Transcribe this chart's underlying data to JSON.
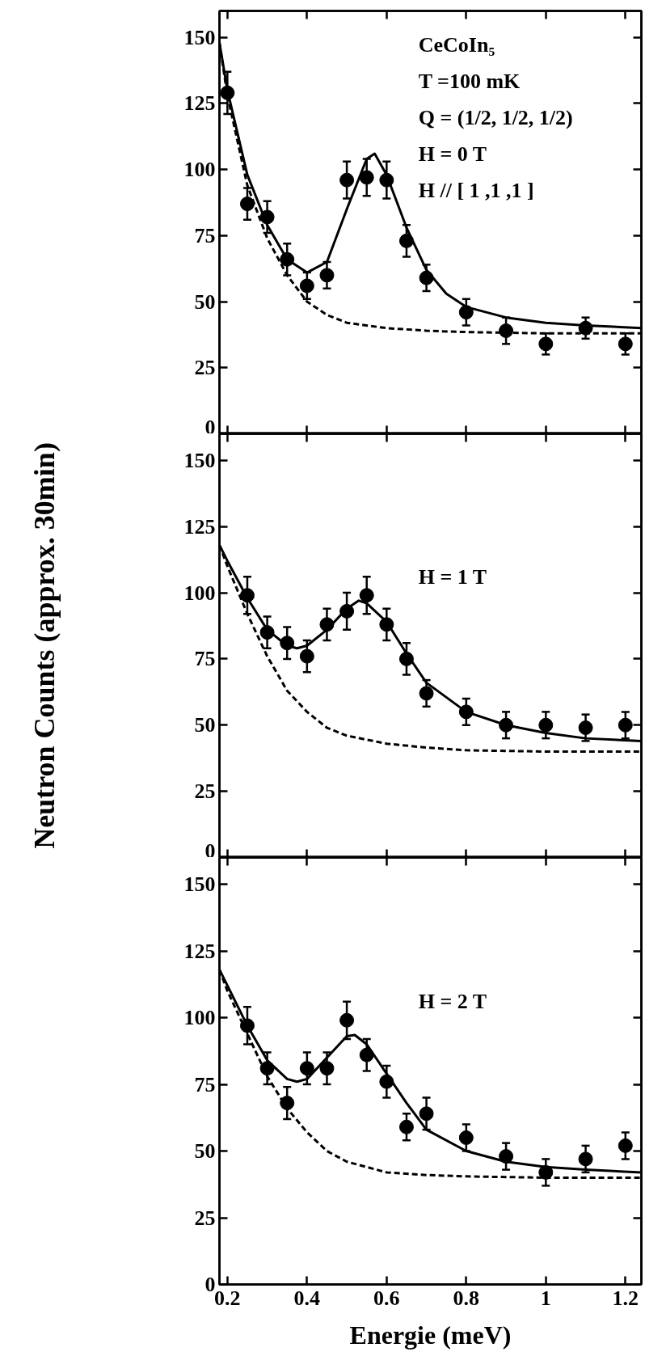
{
  "chart_data": [
    {
      "type": "scatter",
      "annotations": [
        "CeCoIn₅",
        "T =100 mK",
        "Q = (1/2, 1/2, 1/2)",
        "H = 0 T",
        "H // [ 1 ,1 ,1 ]"
      ],
      "xlim": [
        0.18,
        1.24
      ],
      "ylim": [
        0,
        160
      ],
      "xticks": [
        0.2,
        0.4,
        0.6,
        0.8,
        1,
        1.2
      ],
      "yticks": [
        0,
        25,
        50,
        75,
        100,
        125,
        150
      ],
      "tick_labels": "y",
      "grid": false,
      "series": [
        {
          "marker": "circle",
          "color": "#000000",
          "x": [
            0.2,
            0.25,
            0.3,
            0.35,
            0.4,
            0.45,
            0.5,
            0.55,
            0.6,
            0.65,
            0.7,
            0.8,
            0.9,
            1.0,
            1.1,
            1.2
          ],
          "values": [
            129,
            87,
            82,
            66,
            56,
            60,
            96,
            97,
            96,
            73,
            59,
            46,
            39,
            34,
            40,
            34
          ],
          "errors": [
            8,
            6,
            6,
            6,
            5,
            5,
            7,
            7,
            7,
            6,
            5,
            5,
            5,
            4,
            4,
            4
          ]
        },
        {
          "type": "line",
          "line_style": "solid",
          "color": "#000000",
          "x": [
            0.18,
            0.2,
            0.25,
            0.3,
            0.35,
            0.4,
            0.45,
            0.5,
            0.55,
            0.57,
            0.6,
            0.65,
            0.7,
            0.75,
            0.8,
            0.9,
            1.0,
            1.1,
            1.24
          ],
          "values": [
            148,
            130,
            98,
            79,
            66,
            61,
            65,
            85,
            104,
            106,
            98,
            78,
            62,
            53,
            48,
            44,
            42,
            41,
            40
          ]
        },
        {
          "type": "line",
          "line_style": "dashed",
          "color": "#000000",
          "x": [
            0.18,
            0.2,
            0.25,
            0.3,
            0.35,
            0.4,
            0.45,
            0.5,
            0.6,
            0.7,
            0.8,
            1.0,
            1.24
          ],
          "values": [
            148,
            128,
            94,
            74,
            60,
            50,
            45,
            42,
            40,
            39,
            38.5,
            38,
            38
          ]
        }
      ]
    },
    {
      "type": "scatter",
      "ylabel": "Neutron Counts (approx. 30min)",
      "annotations": [
        "H = 1 T"
      ],
      "xlim": [
        0.18,
        1.24
      ],
      "ylim": [
        0,
        160
      ],
      "xticks": [
        0.2,
        0.4,
        0.6,
        0.8,
        1,
        1.2
      ],
      "yticks": [
        0,
        25,
        50,
        75,
        100,
        125,
        150
      ],
      "tick_labels": "y",
      "grid": false,
      "series": [
        {
          "marker": "circle",
          "color": "#000000",
          "x": [
            0.25,
            0.3,
            0.35,
            0.4,
            0.45,
            0.5,
            0.55,
            0.6,
            0.65,
            0.7,
            0.8,
            0.9,
            1.0,
            1.1,
            1.2
          ],
          "values": [
            99,
            85,
            81,
            76,
            88,
            93,
            99,
            88,
            75,
            62,
            55,
            50,
            50,
            49,
            50
          ],
          "errors": [
            7,
            6,
            6,
            6,
            6,
            7,
            7,
            6,
            6,
            5,
            5,
            5,
            5,
            5,
            5
          ]
        },
        {
          "type": "line",
          "line_style": "solid",
          "color": "#000000",
          "x": [
            0.18,
            0.2,
            0.25,
            0.3,
            0.35,
            0.375,
            0.4,
            0.45,
            0.5,
            0.53,
            0.55,
            0.6,
            0.65,
            0.7,
            0.8,
            0.9,
            1.0,
            1.1,
            1.24
          ],
          "values": [
            118,
            112,
            98,
            86,
            80,
            79,
            80,
            86,
            94,
            97,
            96,
            89,
            77,
            66,
            55,
            50,
            47,
            45,
            44
          ]
        },
        {
          "type": "line",
          "line_style": "dashed",
          "color": "#000000",
          "x": [
            0.18,
            0.2,
            0.25,
            0.3,
            0.35,
            0.4,
            0.45,
            0.5,
            0.6,
            0.7,
            0.8,
            1.0,
            1.24
          ],
          "values": [
            118,
            110,
            92,
            76,
            63,
            55,
            49,
            46,
            43,
            41.5,
            40.5,
            40,
            40
          ]
        }
      ]
    },
    {
      "type": "scatter",
      "xlabel": "Energie (meV)",
      "annotations": [
        "H = 2 T"
      ],
      "xlim": [
        0.18,
        1.24
      ],
      "ylim": [
        0,
        160
      ],
      "xticks": [
        0.2,
        0.4,
        0.6,
        0.8,
        1,
        1.2
      ],
      "yticks": [
        0,
        25,
        50,
        75,
        100,
        125,
        150
      ],
      "grid": false,
      "series": [
        {
          "marker": "circle",
          "color": "#000000",
          "x": [
            0.25,
            0.3,
            0.35,
            0.4,
            0.45,
            0.5,
            0.55,
            0.6,
            0.65,
            0.7,
            0.8,
            0.9,
            1.0,
            1.1,
            1.2
          ],
          "values": [
            97,
            81,
            68,
            81,
            81,
            99,
            86,
            76,
            59,
            64,
            55,
            48,
            42,
            47,
            52
          ],
          "errors": [
            7,
            6,
            6,
            6,
            6,
            7,
            6,
            6,
            5,
            6,
            5,
            5,
            5,
            5,
            5
          ]
        },
        {
          "type": "line",
          "line_style": "solid",
          "color": "#000000",
          "x": [
            0.18,
            0.2,
            0.25,
            0.3,
            0.35,
            0.375,
            0.4,
            0.45,
            0.5,
            0.52,
            0.55,
            0.6,
            0.65,
            0.7,
            0.8,
            0.9,
            1.0,
            1.1,
            1.24
          ],
          "values": [
            118,
            112,
            97,
            84,
            77,
            76,
            77,
            85,
            93,
            93.5,
            90,
            79,
            68,
            58,
            50,
            46,
            44,
            43,
            42
          ]
        },
        {
          "type": "line",
          "line_style": "dashed",
          "color": "#000000",
          "x": [
            0.18,
            0.2,
            0.25,
            0.3,
            0.35,
            0.4,
            0.45,
            0.5,
            0.6,
            0.7,
            0.8,
            1.0,
            1.24
          ],
          "values": [
            118,
            110,
            94,
            78,
            66,
            57,
            50,
            46,
            42,
            41,
            40.5,
            40,
            40
          ]
        }
      ]
    }
  ]
}
